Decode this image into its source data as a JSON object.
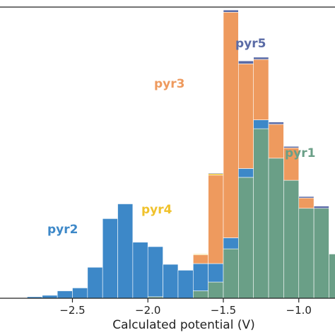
{
  "chart_data": {
    "type": "bar",
    "stacked": true,
    "xlabel": "Calculated potential (V)",
    "ylabel": "",
    "xlim": [
      -2.98,
      -0.76
    ],
    "ylim": [
      0,
      395
    ],
    "bin_width": 0.1,
    "bin_starts": [
      -2.8,
      -2.7,
      -2.6,
      -2.5,
      -2.4,
      -2.3,
      -2.2,
      -2.1,
      -2.0,
      -1.9,
      -1.8,
      -1.7,
      -1.6,
      -1.5,
      -1.4,
      -1.3,
      -1.2,
      -1.1,
      -1.0,
      -0.9,
      -0.8
    ],
    "x_ticks": [
      {
        "value": -2.5,
        "label": "−2.5"
      },
      {
        "value": -2.0,
        "label": "−2.0"
      },
      {
        "value": -1.5,
        "label": "−1.5"
      },
      {
        "value": -1.0,
        "label": "−1.0"
      }
    ],
    "grid": false,
    "series": [
      {
        "name": "pyr1",
        "color": "#6a9f87",
        "values": [
          0,
          0,
          0,
          0,
          0,
          0,
          0,
          0,
          2,
          0,
          0,
          10,
          22,
          67,
          164,
          230,
          190,
          160,
          122,
          122,
          60
        ]
      },
      {
        "name": "pyr2",
        "color": "#3d88c8",
        "values": [
          2,
          4,
          10,
          14,
          42,
          108,
          128,
          76,
          68,
          46,
          38,
          37,
          25,
          15,
          12,
          12,
          0,
          0,
          0,
          0,
          0
        ]
      },
      {
        "name": "pyr3",
        "color": "#ee9a5e",
        "values": [
          0,
          0,
          0,
          0,
          0,
          0,
          0,
          0,
          0,
          0,
          0,
          12,
          120,
          306,
          142,
          82,
          46,
          44,
          14,
          0,
          0
        ]
      },
      {
        "name": "pyr4",
        "color": "#f0c22c",
        "values": [
          0,
          0,
          0,
          0,
          0,
          0,
          0,
          0,
          0,
          0,
          0,
          1,
          2,
          0,
          0,
          0,
          0,
          0,
          0,
          0,
          0
        ]
      },
      {
        "name": "pyr5",
        "color": "#5a6ba6",
        "values": [
          0,
          0,
          0,
          0,
          0,
          0,
          0,
          0,
          0,
          0,
          0,
          0,
          1,
          3,
          4,
          3,
          3,
          2,
          2,
          3,
          0
        ]
      }
    ]
  }
}
